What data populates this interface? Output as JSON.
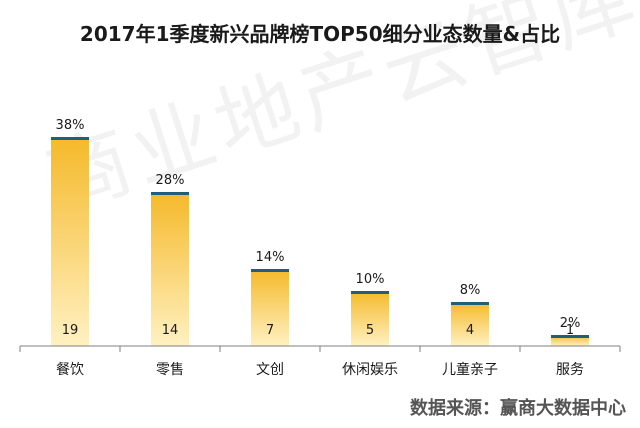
{
  "title": "2017年1季度新兴品牌榜TOP50细分业态数量&占比",
  "watermark_text": "商业地产云智库",
  "source_text": "数据来源：赢商大数据中心",
  "colors": {
    "bar_top": "#f5b92a",
    "bar_bottom": "#fff1c2",
    "bar_cap": "#1f5f7a",
    "axis": "#7f7f7f",
    "text": "#1a1a1a"
  },
  "chart_data": {
    "type": "bar",
    "title": "2017年1季度新兴品牌榜TOP50细分业态数量&占比",
    "categories": [
      "餐饮",
      "零售",
      "文创",
      "休闲娱乐",
      "儿童亲子",
      "服务"
    ],
    "values": [
      19,
      14,
      7,
      5,
      4,
      1
    ],
    "percent_labels": [
      "38%",
      "28%",
      "14%",
      "10%",
      "8%",
      "2%"
    ],
    "ylim": [
      0,
      20
    ],
    "grid": false,
    "legend": "none"
  }
}
